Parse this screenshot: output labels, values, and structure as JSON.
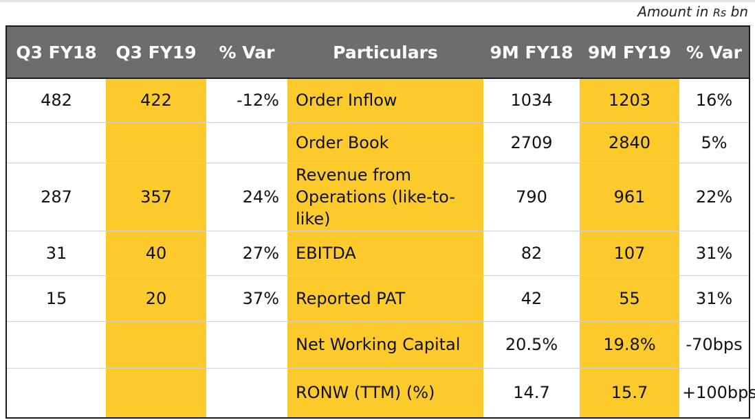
{
  "unit_note": {
    "prefix": "Amount in ",
    "currency": "Rs",
    "suffix": " bn"
  },
  "colors": {
    "header_bg": "#6d6d6d",
    "highlight": "#fcca2a"
  },
  "headers": [
    "Q3 FY18",
    "Q3 FY19",
    "% Var",
    "Particulars",
    "9M FY18",
    "9M FY19",
    "% Var"
  ],
  "rows": [
    {
      "q3fy18": "482",
      "q3fy19": "422",
      "qvar": "-12%",
      "particular": "Order Inflow",
      "m9fy18": "1034",
      "m9fy19": "1203",
      "mvar": "16%"
    },
    {
      "q3fy18": "",
      "q3fy19": "",
      "qvar": "",
      "particular": "Order Book",
      "m9fy18": "2709",
      "m9fy19": "2840",
      "mvar": "5%"
    },
    {
      "q3fy18": "287",
      "q3fy19": "357",
      "qvar": "24%",
      "particular": "Revenue from Operations (like-to-like)",
      "m9fy18": "790",
      "m9fy19": "961",
      "mvar": "22%"
    },
    {
      "q3fy18": "31",
      "q3fy19": "40",
      "qvar": "27%",
      "particular": "EBITDA",
      "m9fy18": "82",
      "m9fy19": "107",
      "mvar": "31%"
    },
    {
      "q3fy18": "15",
      "q3fy19": "20",
      "qvar": "37%",
      "particular": "Reported PAT",
      "m9fy18": "42",
      "m9fy19": "55",
      "mvar": "31%"
    },
    {
      "q3fy18": "",
      "q3fy19": "",
      "qvar": "",
      "particular": "Net Working Capital",
      "m9fy18": "20.5%",
      "m9fy19": "19.8%",
      "mvar": "-70bps"
    },
    {
      "q3fy18": "",
      "q3fy19": "",
      "qvar": "",
      "particular": "RONW (TTM) (%)",
      "m9fy18": "14.7",
      "m9fy19": "15.7",
      "mvar": "+100bps"
    }
  ]
}
